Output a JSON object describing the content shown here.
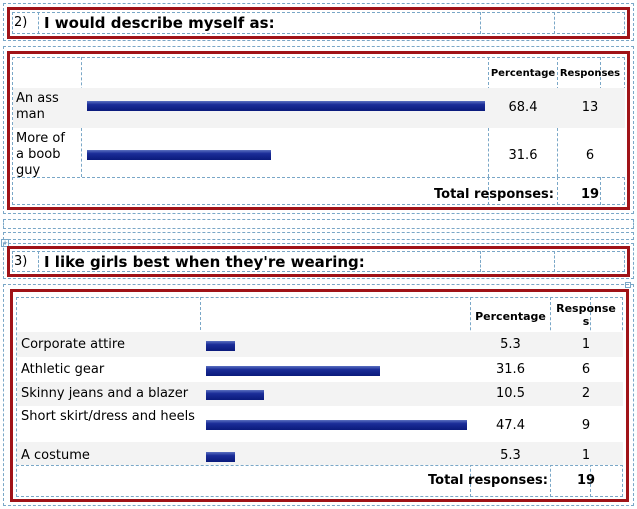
{
  "q2": {
    "number": "2)",
    "title": "I would describe myself as:",
    "headers": {
      "percentage": "Percentage",
      "responses": "Responses"
    },
    "rows": [
      {
        "label": "An ass man",
        "percentage": "68.4",
        "responses": "13",
        "value": 68.4
      },
      {
        "label": "More of a boob guy",
        "percentage": "31.6",
        "responses": "6",
        "value": 31.6
      }
    ],
    "total_label": "Total responses:",
    "total_value": "19"
  },
  "q3": {
    "number": "3)",
    "title": "I like girls best when they're wearing:",
    "headers": {
      "percentage": "Percentage",
      "responses": "Responses"
    },
    "rows": [
      {
        "label": "Corporate attire",
        "percentage": "5.3",
        "responses": "1",
        "value": 5.3
      },
      {
        "label": "Athletic gear",
        "percentage": "31.6",
        "responses": "6",
        "value": 31.6
      },
      {
        "label": "Skinny jeans and a blazer",
        "percentage": "10.5",
        "responses": "2",
        "value": 10.5
      },
      {
        "label": "Short skirt/dress and heels",
        "percentage": "47.4",
        "responses": "9",
        "value": 47.4
      },
      {
        "label": "A costume",
        "percentage": "5.3",
        "responses": "1",
        "value": 5.3
      }
    ],
    "total_label": "Total responses:",
    "total_value": "19"
  },
  "chart_data": [
    {
      "type": "bar",
      "categories": [
        "An ass man",
        "More of a boob guy"
      ],
      "values": [
        68.4,
        31.6
      ],
      "title": "I would describe myself as:"
    },
    {
      "type": "bar",
      "categories": [
        "Corporate attire",
        "Athletic gear",
        "Skinny jeans and a blazer",
        "Short skirt/dress and heels",
        "A costume"
      ],
      "values": [
        5.3,
        31.6,
        10.5,
        47.4,
        5.3
      ],
      "title": "I like girls best when they're wearing:"
    }
  ],
  "colors": {
    "frame": "#a01318",
    "bar": "#0a1a7c",
    "dashed": "#7aa7c7"
  }
}
